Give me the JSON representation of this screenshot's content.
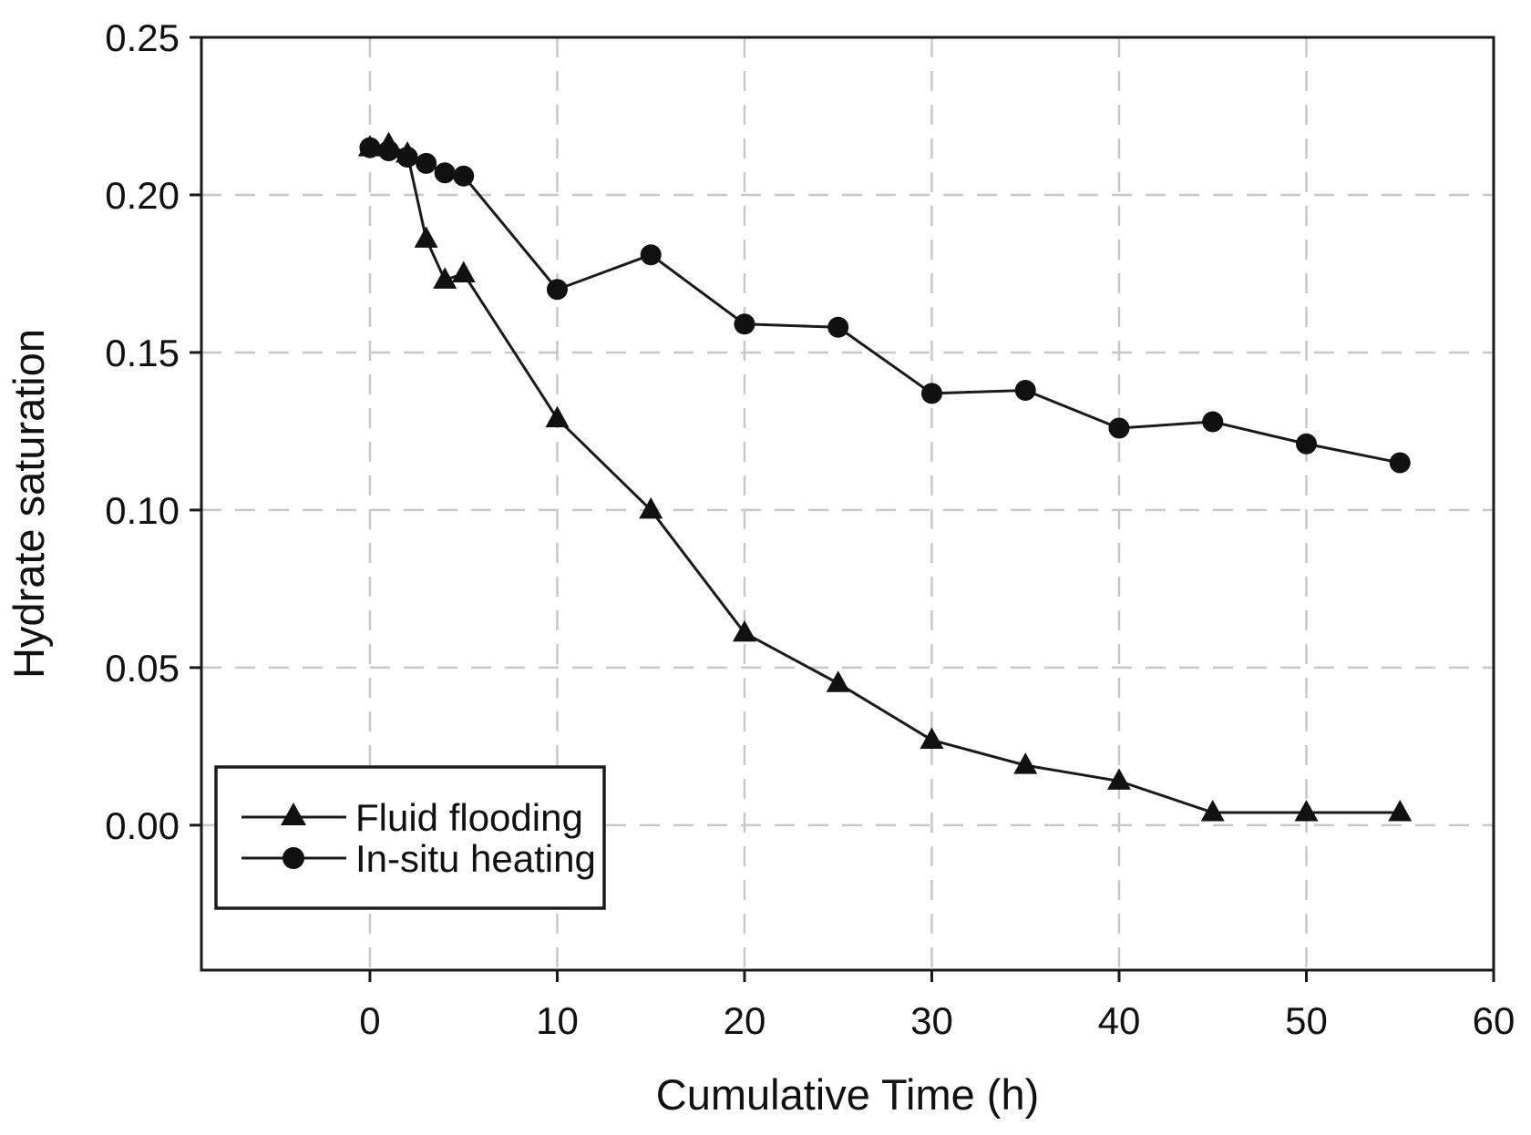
{
  "chart_data": {
    "type": "line",
    "title": "",
    "xlabel": "Cumulative Time (h)",
    "ylabel": "Hydrate saturation",
    "xlim": [
      -9,
      60
    ],
    "ylim": [
      -0.046,
      0.25
    ],
    "x_ticks": [
      0,
      10,
      20,
      30,
      40,
      50,
      60
    ],
    "x_tick_labels": [
      "0",
      "10",
      "20",
      "30",
      "40",
      "50",
      "60"
    ],
    "y_ticks": [
      0.0,
      0.05,
      0.1,
      0.15,
      0.2,
      0.25
    ],
    "y_tick_labels": [
      "0.00",
      "0.05",
      "0.10",
      "0.15",
      "0.20",
      "0.25"
    ],
    "grid": true,
    "grid_x_values": [
      0,
      10,
      20,
      30,
      40,
      50
    ],
    "grid_y_values": [
      0.0,
      0.05,
      0.1,
      0.15,
      0.2
    ],
    "legend_position": "lower-left",
    "series": [
      {
        "name": "Fluid flooding",
        "marker": "triangle",
        "x": [
          0,
          1,
          2,
          3,
          4,
          5,
          10,
          15,
          20,
          25,
          30,
          35,
          40,
          45,
          50,
          55
        ],
        "y": [
          0.215,
          0.216,
          0.213,
          0.186,
          0.173,
          0.175,
          0.129,
          0.1,
          0.061,
          0.045,
          0.027,
          0.019,
          0.014,
          0.004,
          0.004,
          0.004
        ]
      },
      {
        "name": "In-situ heating",
        "marker": "circle",
        "x": [
          0,
          1,
          2,
          3,
          4,
          5,
          10,
          15,
          20,
          25,
          30,
          35,
          40,
          45,
          50,
          55
        ],
        "y": [
          0.215,
          0.214,
          0.212,
          0.21,
          0.207,
          0.206,
          0.17,
          0.181,
          0.159,
          0.158,
          0.137,
          0.138,
          0.126,
          0.128,
          0.121,
          0.115
        ]
      }
    ],
    "colors": {
      "line": "#1a1a1a",
      "marker": "#111111",
      "grid": "#c8c8c8",
      "background": "#ffffff"
    }
  }
}
